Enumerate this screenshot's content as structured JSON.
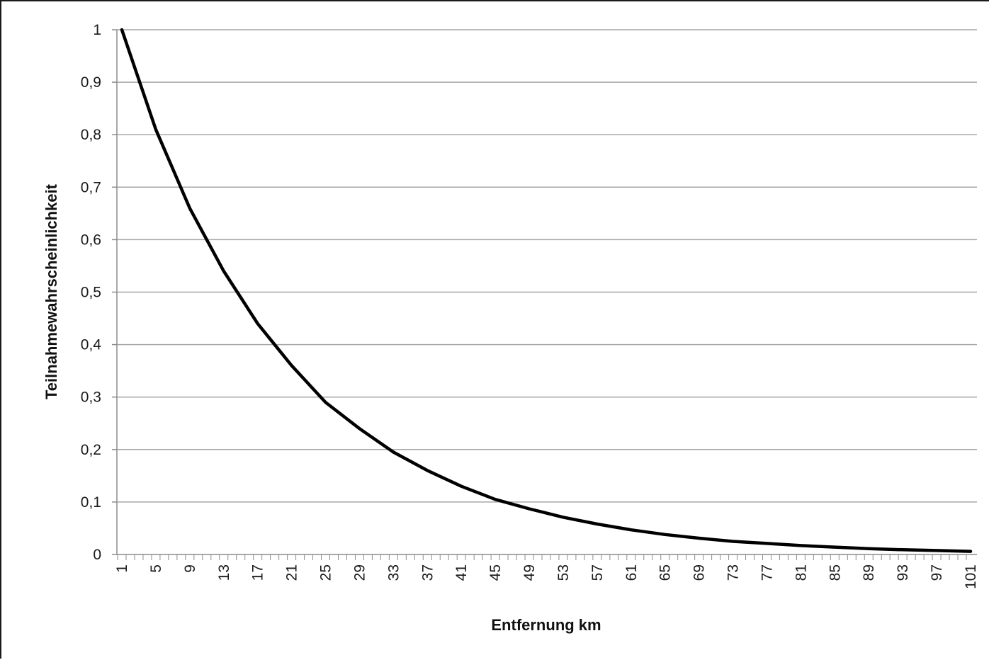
{
  "chart_data": {
    "type": "line",
    "title": "",
    "xlabel": "Entfernung km",
    "ylabel": "Teilnahmewahrscheinlichkeit",
    "x_range": [
      1,
      101
    ],
    "ylim": [
      0,
      1
    ],
    "y_ticks": [
      "0",
      "0,1",
      "0,2",
      "0,3",
      "0,4",
      "0,5",
      "0,6",
      "0,7",
      "0,8",
      "0,9",
      "1"
    ],
    "x_tick_labels": [
      "1",
      "5",
      "9",
      "13",
      "17",
      "21",
      "25",
      "29",
      "33",
      "37",
      "41",
      "45",
      "49",
      "53",
      "57",
      "61",
      "65",
      "69",
      "73",
      "77",
      "81",
      "85",
      "89",
      "93",
      "97",
      "101"
    ],
    "grid": "horizontal",
    "legend": "none",
    "series": [
      {
        "color": "#000000",
        "x": [
          1,
          5,
          9,
          13,
          17,
          21,
          25,
          29,
          33,
          37,
          41,
          45,
          49,
          53,
          57,
          61,
          65,
          69,
          73,
          77,
          81,
          85,
          89,
          93,
          97,
          101
        ],
        "values": [
          1.0,
          0.81,
          0.66,
          0.54,
          0.44,
          0.36,
          0.29,
          0.24,
          0.195,
          0.16,
          0.13,
          0.105,
          0.087,
          0.071,
          0.058,
          0.047,
          0.038,
          0.031,
          0.025,
          0.021,
          0.017,
          0.014,
          0.011,
          0.009,
          0.0075,
          0.006
        ]
      }
    ]
  }
}
